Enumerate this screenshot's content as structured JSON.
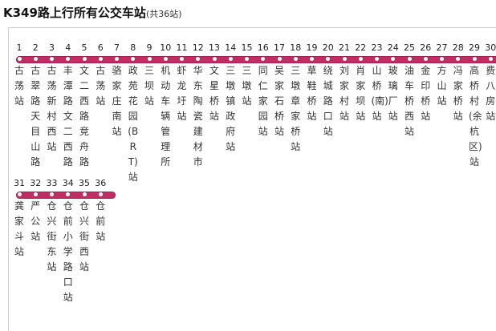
{
  "title": {
    "route_name": "K349路上行所有公交车站",
    "stop_count": "(共36站)"
  },
  "colors": {
    "route_line": "#c02d64",
    "stop_dot": "#ffffff"
  },
  "stops": [
    {
      "num": "1",
      "name": "古荡站"
    },
    {
      "num": "2",
      "name": "古翠路天目山路"
    },
    {
      "num": "3",
      "name": "古荡新村西站"
    },
    {
      "num": "4",
      "name": "丰潭路文二西路"
    },
    {
      "num": "5",
      "name": "文二西路竞舟路"
    },
    {
      "num": "6",
      "name": "古荡站"
    },
    {
      "num": "7",
      "name": "骆家庄南站"
    },
    {
      "num": "8",
      "name": "政苑花园(BRT)站"
    },
    {
      "num": "9",
      "name": "三坝站"
    },
    {
      "num": "10",
      "name": "机动车辆管理所"
    },
    {
      "num": "11",
      "name": "虾龙圩站"
    },
    {
      "num": "12",
      "name": "华东陶瓷建材市"
    },
    {
      "num": "13",
      "name": "文星桥站"
    },
    {
      "num": "14",
      "name": "三墩镇政府站"
    },
    {
      "num": "15",
      "name": "三墩站"
    },
    {
      "num": "16",
      "name": "同仁家园站"
    },
    {
      "num": "17",
      "name": "吴家石桥站"
    },
    {
      "num": "18",
      "name": "三墩章家桥站"
    },
    {
      "num": "19",
      "name": "草鞋桥站"
    },
    {
      "num": "20",
      "name": "绕城路口站"
    },
    {
      "num": "21",
      "name": "刘家村站"
    },
    {
      "num": "22",
      "name": "肖家坝站"
    },
    {
      "num": "23",
      "name": "山桥(南)站"
    },
    {
      "num": "24",
      "name": "玻璃厂站"
    },
    {
      "num": "25",
      "name": "油车桥西站"
    },
    {
      "num": "26",
      "name": "金印桥站"
    },
    {
      "num": "27",
      "name": "方山站"
    },
    {
      "num": "28",
      "name": "冯家桥站"
    },
    {
      "num": "29",
      "name": "高桥村(余杭区)站"
    },
    {
      "num": "30",
      "name": "费八房站"
    },
    {
      "num": "31",
      "name": "龚家斗站"
    },
    {
      "num": "32",
      "name": "严公站"
    },
    {
      "num": "33",
      "name": "仓兴街东站"
    },
    {
      "num": "34",
      "name": "仓前小学路口站"
    },
    {
      "num": "35",
      "name": "仓兴街西站"
    },
    {
      "num": "36",
      "name": "仓前站"
    }
  ]
}
